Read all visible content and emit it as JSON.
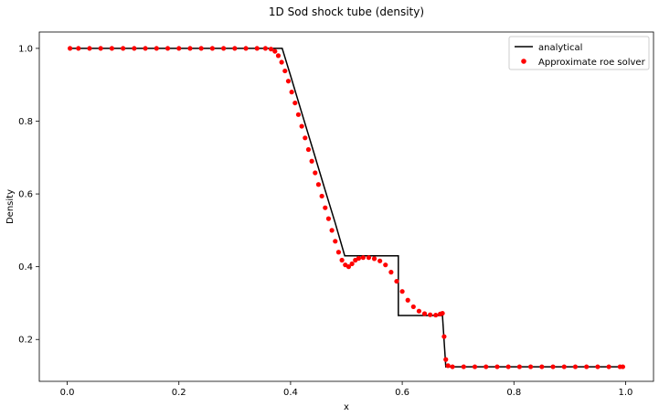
{
  "chart_data": {
    "type": "line",
    "title": "1D Sod shock tube (density)",
    "xlabel": "x",
    "ylabel": "Density",
    "xlim": [
      -0.05,
      1.05
    ],
    "ylim": [
      0.085,
      1.045
    ],
    "xticks": [
      0.0,
      0.2,
      0.4,
      0.6,
      0.8,
      1.0
    ],
    "xtick_labels": [
      "0.0",
      "0.2",
      "0.4",
      "0.6",
      "0.8",
      "1.0"
    ],
    "yticks": [
      0.2,
      0.4,
      0.6,
      0.8,
      1.0
    ],
    "ytick_labels": [
      "0.2",
      "0.4",
      "0.6",
      "0.8",
      "1.0"
    ],
    "grid": false,
    "legend_position": "upper right",
    "series": [
      {
        "name": "analytical",
        "kind": "line",
        "color": "#000000",
        "points": [
          [
            0.005,
            1.0
          ],
          [
            0.385,
            1.0
          ],
          [
            0.4,
            0.925
          ],
          [
            0.42,
            0.823
          ],
          [
            0.44,
            0.722
          ],
          [
            0.46,
            0.62
          ],
          [
            0.48,
            0.52
          ],
          [
            0.497,
            0.43
          ],
          [
            0.593,
            0.43
          ],
          [
            0.593,
            0.266
          ],
          [
            0.672,
            0.266
          ],
          [
            0.678,
            0.125
          ],
          [
            0.995,
            0.125
          ]
        ]
      },
      {
        "name": "Approximate roe solver",
        "kind": "scatter",
        "color": "#ff0000",
        "points": [
          [
            0.005,
            1.0
          ],
          [
            0.02,
            1.0
          ],
          [
            0.04,
            1.0
          ],
          [
            0.06,
            1.0
          ],
          [
            0.08,
            1.0
          ],
          [
            0.1,
            1.0
          ],
          [
            0.12,
            1.0
          ],
          [
            0.14,
            1.0
          ],
          [
            0.16,
            1.0
          ],
          [
            0.18,
            1.0
          ],
          [
            0.2,
            1.0
          ],
          [
            0.22,
            1.0
          ],
          [
            0.24,
            1.0
          ],
          [
            0.26,
            1.0
          ],
          [
            0.28,
            1.0
          ],
          [
            0.3,
            1.0
          ],
          [
            0.32,
            1.0
          ],
          [
            0.34,
            1.0
          ],
          [
            0.355,
            1.0
          ],
          [
            0.365,
            0.998
          ],
          [
            0.372,
            0.992
          ],
          [
            0.378,
            0.98
          ],
          [
            0.384,
            0.962
          ],
          [
            0.39,
            0.938
          ],
          [
            0.396,
            0.91
          ],
          [
            0.402,
            0.88
          ],
          [
            0.408,
            0.85
          ],
          [
            0.414,
            0.818
          ],
          [
            0.42,
            0.786
          ],
          [
            0.426,
            0.754
          ],
          [
            0.432,
            0.722
          ],
          [
            0.438,
            0.69
          ],
          [
            0.444,
            0.658
          ],
          [
            0.45,
            0.626
          ],
          [
            0.456,
            0.594
          ],
          [
            0.462,
            0.562
          ],
          [
            0.468,
            0.532
          ],
          [
            0.474,
            0.5
          ],
          [
            0.48,
            0.47
          ],
          [
            0.486,
            0.44
          ],
          [
            0.492,
            0.418
          ],
          [
            0.498,
            0.405
          ],
          [
            0.504,
            0.4
          ],
          [
            0.51,
            0.408
          ],
          [
            0.516,
            0.418
          ],
          [
            0.522,
            0.423
          ],
          [
            0.53,
            0.425
          ],
          [
            0.54,
            0.425
          ],
          [
            0.55,
            0.422
          ],
          [
            0.56,
            0.416
          ],
          [
            0.57,
            0.405
          ],
          [
            0.58,
            0.385
          ],
          [
            0.59,
            0.36
          ],
          [
            0.6,
            0.332
          ],
          [
            0.61,
            0.308
          ],
          [
            0.62,
            0.29
          ],
          [
            0.63,
            0.278
          ],
          [
            0.64,
            0.271
          ],
          [
            0.65,
            0.268
          ],
          [
            0.66,
            0.267
          ],
          [
            0.668,
            0.27
          ],
          [
            0.672,
            0.272
          ],
          [
            0.675,
            0.208
          ],
          [
            0.678,
            0.145
          ],
          [
            0.682,
            0.128
          ],
          [
            0.69,
            0.125
          ],
          [
            0.71,
            0.125
          ],
          [
            0.73,
            0.125
          ],
          [
            0.75,
            0.125
          ],
          [
            0.77,
            0.125
          ],
          [
            0.79,
            0.125
          ],
          [
            0.81,
            0.125
          ],
          [
            0.83,
            0.125
          ],
          [
            0.85,
            0.125
          ],
          [
            0.87,
            0.125
          ],
          [
            0.89,
            0.125
          ],
          [
            0.91,
            0.125
          ],
          [
            0.93,
            0.125
          ],
          [
            0.95,
            0.125
          ],
          [
            0.97,
            0.125
          ],
          [
            0.99,
            0.125
          ],
          [
            0.995,
            0.125
          ]
        ]
      }
    ]
  }
}
